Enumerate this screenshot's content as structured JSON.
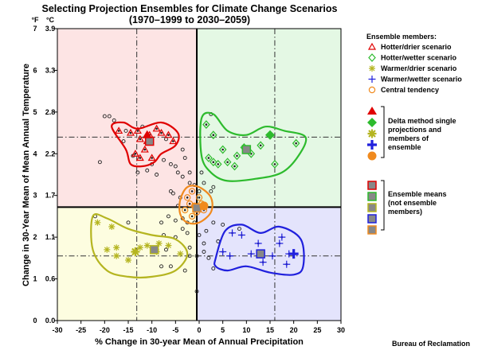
{
  "chart_data": {
    "type": "scatter",
    "title_line1": "Selecting Projection Ensembles for Climate Change Scenarios",
    "title_line2": "(1970–1999 to 2030–2059)",
    "xlabel": "% Change in 30-year Mean of Annual Precipitation",
    "ylabel": "Change in 30-Year Mean of Mean Annual Temperature",
    "credit": "Bureau of Reclamation",
    "xlim": [
      -30,
      30
    ],
    "ylim_f": [
      0,
      7
    ],
    "x_ticks": [
      "-30",
      "-25",
      "-20",
      "-15",
      "-10",
      "-5",
      "0",
      "5",
      "10",
      "15",
      "20",
      "25",
      "30"
    ],
    "y_unit_f": "°F",
    "y_unit_c": "°C",
    "y_ticks_f": [
      "0",
      "1",
      "2",
      "3",
      "4",
      "5",
      "6",
      "7"
    ],
    "y_ticks_c": [
      "0.0",
      "0.6",
      "1.1",
      "1.7",
      "2.2",
      "2.8",
      "3.3",
      "3.9"
    ],
    "median": {
      "x": -0.5,
      "y": 2.72
    },
    "percentile_lines_x": [
      -13.2,
      16
    ],
    "percentile_lines_y": [
      4.4,
      1.55
    ],
    "quadrant_colors": [
      "#fde4e4",
      "#e4f8e4",
      "#fdfde0",
      "#e4e4fc"
    ],
    "ensembles": [
      {
        "name": "Hotter/drier scenario",
        "color": "#e00000",
        "points": [
          [
            -17,
            4.55
          ],
          [
            -14.5,
            4.5
          ],
          [
            -13,
            4.55
          ],
          [
            -12.5,
            4.35
          ],
          [
            -11,
            4.3
          ],
          [
            -10.5,
            4.45
          ],
          [
            -9,
            4.6
          ],
          [
            -8,
            4.5
          ],
          [
            -6.5,
            4.45
          ],
          [
            -5.5,
            4.3
          ],
          [
            -11.5,
            4.1
          ],
          [
            -13.5,
            4.0
          ],
          [
            -12.5,
            3.9
          ],
          [
            -10,
            3.9
          ]
        ],
        "hull": [
          [
            -18.5,
            4.65
          ],
          [
            -16,
            4.75
          ],
          [
            -13,
            4.6
          ],
          [
            -8,
            4.75
          ],
          [
            -4.5,
            4.5
          ],
          [
            -5,
            4.2
          ],
          [
            -8,
            4.0
          ],
          [
            -9.5,
            3.8
          ],
          [
            -12,
            3.7
          ],
          [
            -14.5,
            3.75
          ],
          [
            -15.5,
            4.1
          ]
        ],
        "mean": [
          -10.5,
          4.3
        ],
        "delta": [
          -11,
          4.45
        ]
      },
      {
        "name": "Hotter/wetter scenario",
        "color": "#2dbb2d",
        "points": [
          [
            1.5,
            4.7
          ],
          [
            3,
            4.45
          ],
          [
            5,
            4.1
          ],
          [
            2,
            3.9
          ],
          [
            3,
            3.8
          ],
          [
            4,
            3.75
          ],
          [
            6,
            3.8
          ],
          [
            9.5,
            4.15
          ],
          [
            13,
            4.2
          ],
          [
            16,
            3.75
          ],
          [
            20.5,
            4.25
          ],
          [
            8,
            3.95
          ],
          [
            11,
            4.0
          ],
          [
            7.5,
            3.7
          ]
        ],
        "hull": [
          [
            0.5,
            4.85
          ],
          [
            3,
            4.95
          ],
          [
            6,
            4.55
          ],
          [
            10,
            4.45
          ],
          [
            14,
            4.65
          ],
          [
            18,
            4.55
          ],
          [
            22.5,
            4.4
          ],
          [
            21,
            3.95
          ],
          [
            17.5,
            3.55
          ],
          [
            12,
            3.4
          ],
          [
            6,
            3.35
          ],
          [
            2.5,
            3.55
          ],
          [
            0.5,
            3.95
          ]
        ],
        "mean": [
          10,
          4.1
        ],
        "delta": [
          15,
          4.45
        ]
      },
      {
        "name": "Warmer/drier scenario",
        "color": "#b5b520",
        "points": [
          [
            -21.5,
            2.35
          ],
          [
            -18.5,
            2.25
          ],
          [
            -19.5,
            1.7
          ],
          [
            -17.5,
            1.55
          ],
          [
            -15,
            1.45
          ],
          [
            -11,
            1.8
          ],
          [
            -8.5,
            1.85
          ],
          [
            -6.5,
            1.8
          ],
          [
            -4,
            1.6
          ],
          [
            -9,
            1.65
          ],
          [
            -12.5,
            1.75
          ],
          [
            -17.5,
            1.75
          ]
        ],
        "hull": [
          [
            -22.5,
            2.5
          ],
          [
            -19.5,
            2.45
          ],
          [
            -15,
            2.2
          ],
          [
            -10,
            2.05
          ],
          [
            -5,
            1.95
          ],
          [
            -2.5,
            1.6
          ],
          [
            -5,
            1.2
          ],
          [
            -10,
            1.05
          ],
          [
            -15,
            1.05
          ],
          [
            -19.5,
            1.2
          ],
          [
            -22.5,
            1.7
          ]
        ],
        "mean": [
          -9.5,
          1.7
        ],
        "delta": [
          -13.5,
          1.65
        ]
      },
      {
        "name": "Warmer/wetter scenario",
        "color": "#2020dd",
        "points": [
          [
            5,
            1.65
          ],
          [
            6.5,
            1.55
          ],
          [
            7,
            2.1
          ],
          [
            9,
            2.05
          ],
          [
            12.5,
            1.85
          ],
          [
            13.5,
            1.4
          ],
          [
            15.5,
            1.55
          ],
          [
            17.5,
            2.0
          ],
          [
            18.5,
            1.35
          ],
          [
            19,
            1.6
          ],
          [
            17,
            1.85
          ],
          [
            11,
            1.6
          ]
        ],
        "hull": [
          [
            3.5,
            1.5
          ],
          [
            5.5,
            2.15
          ],
          [
            9,
            2.3
          ],
          [
            13,
            2.1
          ],
          [
            17,
            2.25
          ],
          [
            21.5,
            1.95
          ],
          [
            22,
            1.3
          ],
          [
            20,
            1.1
          ],
          [
            15,
            1.15
          ],
          [
            10,
            1.3
          ],
          [
            6,
            1.2
          ],
          [
            3.5,
            1.3
          ]
        ],
        "mean": [
          13,
          1.6
        ],
        "delta": [
          20,
          1.6
        ]
      },
      {
        "name": "Central tendency",
        "color": "#f08a1e",
        "points": [
          [
            -1.5,
            3.1
          ],
          [
            0,
            2.95
          ],
          [
            -2,
            2.8
          ],
          [
            -1,
            2.75
          ],
          [
            0.5,
            2.8
          ],
          [
            -3,
            2.65
          ],
          [
            -0.5,
            2.6
          ],
          [
            -1.5,
            2.5
          ],
          [
            1,
            2.65
          ],
          [
            -2.5,
            2.95
          ]
        ],
        "hull": [
          [
            -4,
            2.9
          ],
          [
            -2.5,
            3.2
          ],
          [
            0,
            3.2
          ],
          [
            2.5,
            2.95
          ],
          [
            2.5,
            2.6
          ],
          [
            0,
            2.35
          ],
          [
            -2.5,
            2.35
          ],
          [
            -4,
            2.55
          ]
        ],
        "mean": [
          -0.5,
          2.7
        ],
        "delta": [
          1,
          2.75
        ]
      }
    ],
    "other_points": [
      [
        -21,
        3.8
      ],
      [
        -19,
        4.9
      ],
      [
        -18,
        4.8
      ],
      [
        -15.5,
        4.55
      ],
      [
        -16,
        4.3
      ],
      [
        -14,
        3.95
      ],
      [
        -11,
        3.6
      ],
      [
        -9,
        3.5
      ],
      [
        -7.5,
        3.85
      ],
      [
        -6,
        3.75
      ],
      [
        -5,
        3.7
      ],
      [
        -4.5,
        3.55
      ],
      [
        -3.5,
        3.45
      ],
      [
        -3,
        3.9
      ],
      [
        -2,
        3.3
      ],
      [
        -2,
        3.55
      ],
      [
        0,
        3.1
      ],
      [
        -1,
        3.25
      ],
      [
        1,
        3.3
      ],
      [
        2.5,
        3.1
      ],
      [
        3,
        3.2
      ],
      [
        -6,
        3.1
      ],
      [
        -5.5,
        3.05
      ],
      [
        -4,
        2.95
      ],
      [
        -4.5,
        2.75
      ],
      [
        -3.5,
        2.45
      ],
      [
        -2.5,
        2.35
      ],
      [
        -3.5,
        2.2
      ],
      [
        -5,
        2.0
      ],
      [
        -7,
        1.7
      ],
      [
        -8,
        1.3
      ],
      [
        -6,
        1.3
      ],
      [
        -3,
        1.2
      ],
      [
        -2,
        1.75
      ],
      [
        -0.5,
        1.55
      ],
      [
        0,
        2.05
      ],
      [
        1,
        1.85
      ],
      [
        2,
        1.5
      ],
      [
        3,
        1.25
      ],
      [
        4,
        1.9
      ],
      [
        1.5,
        2.15
      ],
      [
        3,
        2.35
      ],
      [
        -0.5,
        0.7
      ],
      [
        -2,
        1.55
      ],
      [
        -2.5,
        2.1
      ],
      [
        -1,
        2.35
      ],
      [
        -7.5,
        2.05
      ],
      [
        -8,
        2.35
      ],
      [
        -6.5,
        2.5
      ],
      [
        -5,
        2.4
      ],
      [
        -20,
        4.9
      ],
      [
        2.5,
        4.95
      ],
      [
        0.5,
        3.55
      ],
      [
        -3.5,
        4.1
      ],
      [
        -7,
        4.35
      ],
      [
        -12,
        4.65
      ],
      [
        -10,
        3.75
      ],
      [
        -13,
        3.55
      ],
      [
        -22,
        2.5
      ],
      [
        -15,
        2.35
      ],
      [
        1,
        1.65
      ],
      [
        5,
        2.3
      ],
      [
        8.5,
        2.2
      ]
    ],
    "legend_header": "Ensemble members:",
    "legend_members": [
      "Hotter/drier scenario",
      "Hotter/wetter scenario",
      "Warmer/drier scenario",
      "Warmer/wetter scenario",
      "Central tendency"
    ],
    "legend_delta_text": [
      "Delta method single",
      "projections and",
      "members of",
      "ensemble"
    ],
    "legend_mean_text": [
      "Ensemble means",
      "(not ensemble",
      "members)"
    ]
  }
}
